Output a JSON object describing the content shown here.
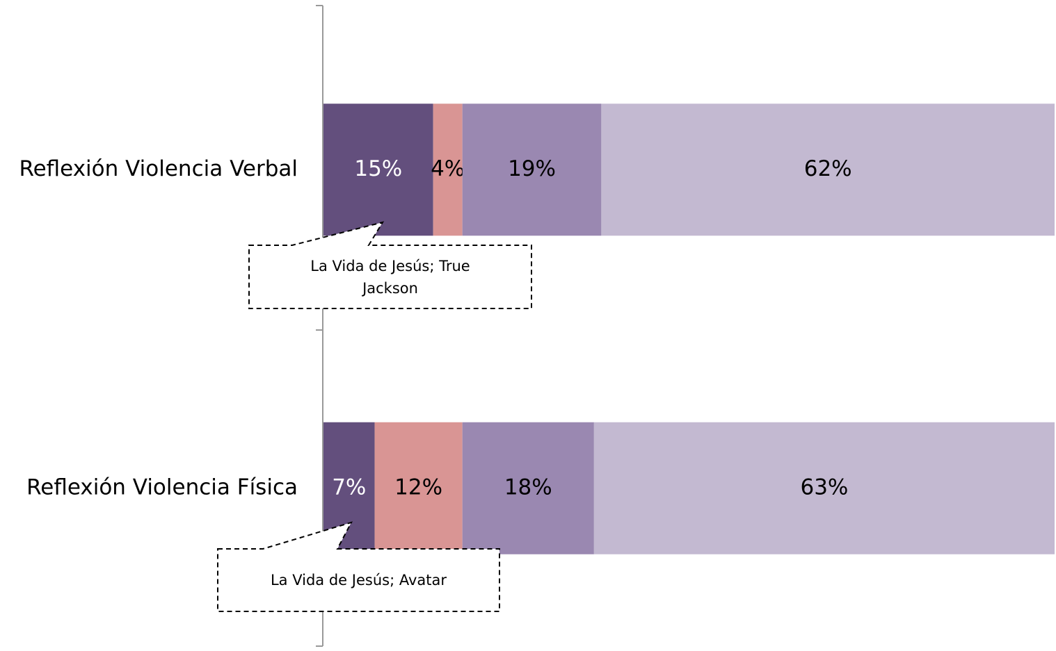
{
  "chart_data": {
    "type": "stacked_barh",
    "categories": [
      "Reflexión Violencia Verbal",
      "Reflexión Violencia Física"
    ],
    "series": [
      {
        "color": "#634f7d",
        "values": [
          15,
          7
        ],
        "value_labels": [
          "15%",
          "7%"
        ]
      },
      {
        "color": "#d99594",
        "values": [
          4,
          12
        ],
        "value_labels": [
          "4%",
          "12%"
        ]
      },
      {
        "color": "#9a88b1",
        "values": [
          19,
          18
        ],
        "value_labels": [
          "19%",
          "18%"
        ]
      },
      {
        "color": "#c3b9d1",
        "values": [
          62,
          63
        ],
        "value_labels": [
          "62%",
          "63%"
        ]
      }
    ],
    "xlim": [
      0,
      100
    ],
    "annotations": [
      "La Vida de Jesús; True Jackson",
      "La Vida de Jesús; Avatar"
    ]
  }
}
